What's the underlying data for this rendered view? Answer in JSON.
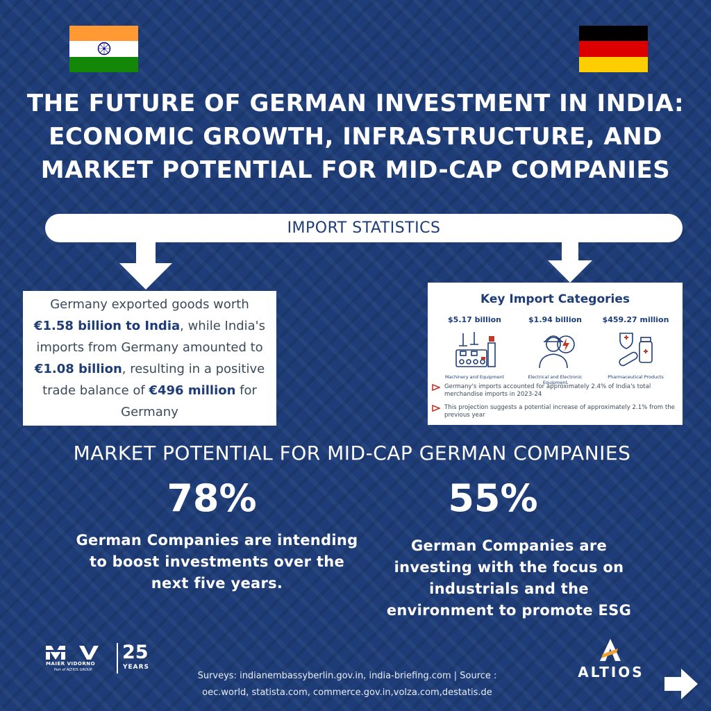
{
  "title": {
    "line1": "THE FUTURE OF GERMAN INVESTMENT IN INDIA:",
    "line2": "ECONOMIC GROWTH, INFRASTRUCTURE, AND",
    "line3": "MARKET POTENTIAL FOR MID-CAP COMPANIES"
  },
  "import_statistics": {
    "label": "IMPORT STATISTICS",
    "left_box": {
      "t1": "Germany exported goods worth",
      "b1": "€1.58 billion to India",
      "t2": ", while India's imports from Germany amounted to",
      "b2": "€1.08 billion",
      "t3": ", resulting in a positive trade balance of",
      "b3": "€496 million",
      "t4": " for Germany"
    },
    "right_box": {
      "title": "Key Import Categories",
      "categories": [
        {
          "value": "$5.17 billion",
          "label": "Machinery and Equipment",
          "icon": "machinery-icon"
        },
        {
          "value": "$1.94 billion",
          "label": "Electrical and Electronic Equipment",
          "icon": "electrician-icon"
        },
        {
          "value": "$459.27 million",
          "label": "Pharmaceutical Products",
          "icon": "pharma-icon"
        }
      ],
      "notes": [
        "Germany's imports accounted for approximately 2.4% of India's total merchandise imports in 2023-24",
        "This projection suggests a potential increase of approximately 2.1% from the previous year"
      ]
    }
  },
  "market": {
    "title": "MARKET POTENTIAL FOR MID-CAP GERMAN COMPANIES",
    "stats": [
      {
        "value": "78%",
        "text": "German Companies are intending to boost investments over the next five years."
      },
      {
        "value": "55%",
        "text": "German Companies are investing with the focus on industrials and the environment to promote ESG"
      }
    ]
  },
  "footer": {
    "mv_logo": {
      "brand": "MAIER VIDORNO",
      "sub": "Part of ALTIOS GROUP",
      "years": "25",
      "years_label": "YEARS"
    },
    "altios_logo": "ALTIOS",
    "sources_line1": "Surveys: indianembassyberlin.gov.in, india-briefing.com | Source :",
    "sources_line2": "oec.world, statista.com, commerce.gov.in,volza.com,destatis.de"
  },
  "colors": {
    "background": "#1e3d78",
    "accent_red": "#c0392b",
    "india_saffron": "#FF9933",
    "india_green": "#138808",
    "germany_red": "#DD0000",
    "germany_gold": "#FFCE00"
  }
}
